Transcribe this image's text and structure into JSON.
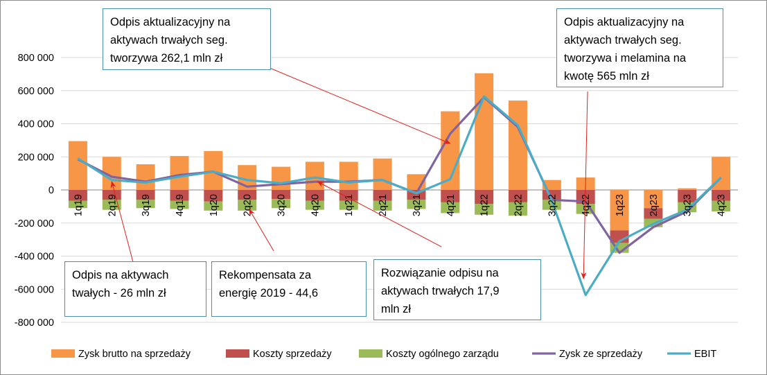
{
  "chart_data": {
    "type": "bar",
    "stacked": true,
    "categories": [
      "1q19",
      "2q19",
      "3q19",
      "4q19",
      "1q20",
      "2q20",
      "3q20",
      "4q20",
      "1q21",
      "2q21",
      "3q21",
      "4q21",
      "1q22",
      "2q22",
      "3q22",
      "4q22",
      "1q23",
      "2q23",
      "3q23",
      "4q23"
    ],
    "series": [
      {
        "name": "Zysk brutto na sprzedaży",
        "kind": "bar",
        "color": "#f79646",
        "values": [
          295000,
          200000,
          155000,
          205000,
          235000,
          150000,
          140000,
          170000,
          170000,
          190000,
          95000,
          475000,
          705000,
          540000,
          60000,
          75000,
          -245000,
          -110000,
          10000,
          200000
        ]
      },
      {
        "name": "Koszty sprzedaży",
        "kind": "bar",
        "color": "#c0504d",
        "values": [
          -65000,
          -60000,
          -60000,
          -65000,
          -70000,
          -60000,
          -55000,
          -65000,
          -65000,
          -65000,
          -60000,
          -75000,
          -85000,
          -75000,
          -60000,
          -85000,
          -75000,
          -65000,
          -75000,
          -65000
        ]
      },
      {
        "name": "Koszty ogólnego zarządu",
        "kind": "bar",
        "color": "#9bbb59",
        "values": [
          -45000,
          -60000,
          -50000,
          -50000,
          -55000,
          -65000,
          -55000,
          -55000,
          -55000,
          -60000,
          -55000,
          -65000,
          -65000,
          -80000,
          -60000,
          -60000,
          -60000,
          -50000,
          -60000,
          -65000
        ]
      },
      {
        "name": "Zysk ze sprzedaży",
        "kind": "line",
        "color": "#8064a2",
        "values": [
          185000,
          80000,
          50000,
          90000,
          110000,
          20000,
          35000,
          50000,
          50000,
          60000,
          -20000,
          340000,
          560000,
          380000,
          -60000,
          -70000,
          -380000,
          -225000,
          -130000,
          75000
        ]
      },
      {
        "name": "EBIT",
        "kind": "line",
        "color": "#4bacc6",
        "values": [
          190000,
          60000,
          45000,
          80000,
          110000,
          60000,
          40000,
          75000,
          45000,
          60000,
          -20000,
          65000,
          565000,
          390000,
          -65000,
          -635000,
          -310000,
          -205000,
          -120000,
          75000
        ]
      }
    ],
    "ylim": [
      -800000,
      800000
    ],
    "yticks": [
      -800000,
      -600000,
      -400000,
      -200000,
      0,
      200000,
      400000,
      600000,
      800000
    ],
    "ytick_labels": [
      "-800 000",
      "-600 000",
      "-400 000",
      "-200 000",
      "0",
      "200 000",
      "400 000",
      "600 000",
      "800 000"
    ],
    "grid": true,
    "legend_position": "bottom",
    "annotations": [
      {
        "text": "Odpis aktualizacyjny na\naktywach trwałych seg.\ntworzywa 262,1 mln zł",
        "points_to": "4q21"
      },
      {
        "text": "Odpis aktualizacyjny na\naktywach trwałych seg.\ntworzywa i melamina na\nkwotę 565 mln zł",
        "points_to": "4q22"
      },
      {
        "text": "Odpis na aktywach\ntwałych - 26 mln zł",
        "points_to": "2q19"
      },
      {
        "text": "Rekompensata za\nenergię 2019 - 44,6",
        "points_to": "2q20"
      },
      {
        "text": "Rozwiązanie odpisu na\naktywach trwałych 17,9\nmln zł",
        "points_to": "4q20"
      }
    ]
  }
}
